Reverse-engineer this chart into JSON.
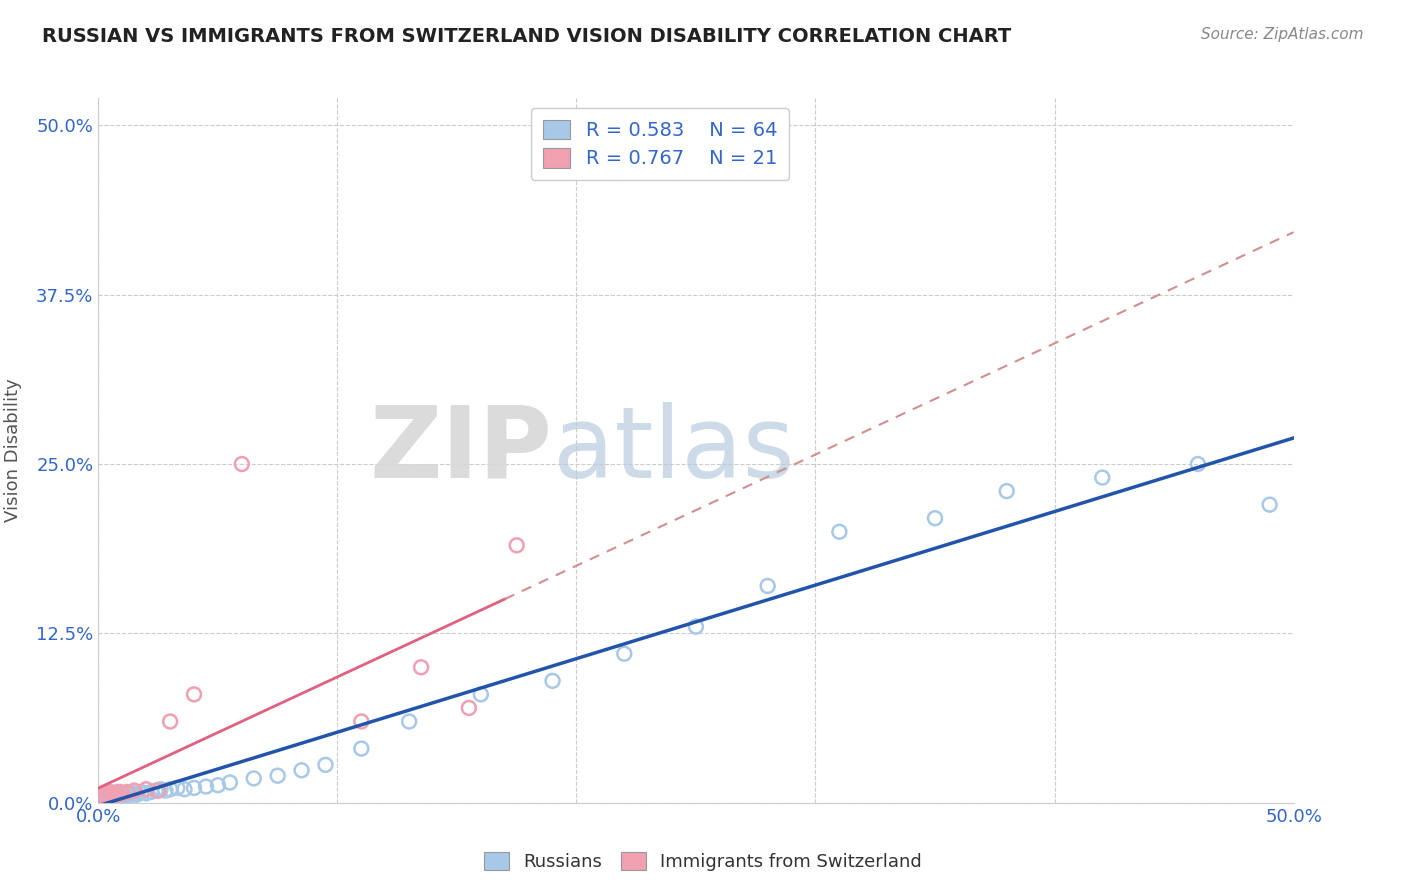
{
  "title": "RUSSIAN VS IMMIGRANTS FROM SWITZERLAND VISION DISABILITY CORRELATION CHART",
  "source": "Source: ZipAtlas.com",
  "ylabel": "Vision Disability",
  "xlim": [
    0.0,
    0.5
  ],
  "ylim": [
    0.0,
    0.52
  ],
  "ytick_labels": [
    "0.0%",
    "12.5%",
    "25.0%",
    "37.5%",
    "50.0%"
  ],
  "ytick_values": [
    0.0,
    0.125,
    0.25,
    0.375,
    0.5
  ],
  "title_fontsize": 14,
  "source_fontsize": 11,
  "russian_color": "#a8c8e8",
  "swiss_color": "#f0a0b0",
  "russian_line_color": "#2255aa",
  "swiss_line_solid_color": "#e06080",
  "swiss_line_dash_color": "#d09090",
  "legend_text_color": "#3366cc",
  "R_russian": 0.583,
  "N_russian": 64,
  "R_swiss": 0.767,
  "N_swiss": 21,
  "russian_x": [
    0.001,
    0.001,
    0.002,
    0.002,
    0.002,
    0.003,
    0.003,
    0.003,
    0.003,
    0.004,
    0.004,
    0.004,
    0.005,
    0.005,
    0.005,
    0.006,
    0.006,
    0.006,
    0.007,
    0.007,
    0.007,
    0.008,
    0.008,
    0.008,
    0.009,
    0.009,
    0.01,
    0.01,
    0.011,
    0.012,
    0.013,
    0.014,
    0.015,
    0.016,
    0.018,
    0.02,
    0.022,
    0.024,
    0.026,
    0.028,
    0.03,
    0.033,
    0.036,
    0.04,
    0.045,
    0.05,
    0.055,
    0.065,
    0.075,
    0.085,
    0.095,
    0.11,
    0.13,
    0.16,
    0.19,
    0.22,
    0.25,
    0.28,
    0.31,
    0.35,
    0.38,
    0.42,
    0.46,
    0.49
  ],
  "russian_y": [
    0.004,
    0.005,
    0.003,
    0.005,
    0.006,
    0.003,
    0.004,
    0.006,
    0.007,
    0.004,
    0.005,
    0.007,
    0.003,
    0.005,
    0.007,
    0.004,
    0.005,
    0.007,
    0.003,
    0.006,
    0.007,
    0.004,
    0.006,
    0.008,
    0.005,
    0.007,
    0.004,
    0.007,
    0.006,
    0.005,
    0.007,
    0.006,
    0.007,
    0.006,
    0.008,
    0.007,
    0.008,
    0.009,
    0.01,
    0.009,
    0.01,
    0.011,
    0.01,
    0.011,
    0.012,
    0.013,
    0.015,
    0.018,
    0.02,
    0.024,
    0.028,
    0.04,
    0.06,
    0.08,
    0.09,
    0.11,
    0.13,
    0.16,
    0.2,
    0.21,
    0.23,
    0.24,
    0.25,
    0.22
  ],
  "swiss_x": [
    0.001,
    0.002,
    0.003,
    0.004,
    0.005,
    0.006,
    0.007,
    0.008,
    0.009,
    0.01,
    0.012,
    0.015,
    0.02,
    0.025,
    0.03,
    0.04,
    0.06,
    0.11,
    0.135,
    0.155,
    0.175
  ],
  "swiss_y": [
    0.006,
    0.005,
    0.007,
    0.006,
    0.008,
    0.005,
    0.007,
    0.006,
    0.008,
    0.007,
    0.008,
    0.009,
    0.01,
    0.009,
    0.06,
    0.08,
    0.25,
    0.06,
    0.1,
    0.07,
    0.19
  ],
  "watermark_zip": "ZIP",
  "watermark_atlas": "atlas",
  "background_color": "#ffffff",
  "grid_color": "#cccccc"
}
